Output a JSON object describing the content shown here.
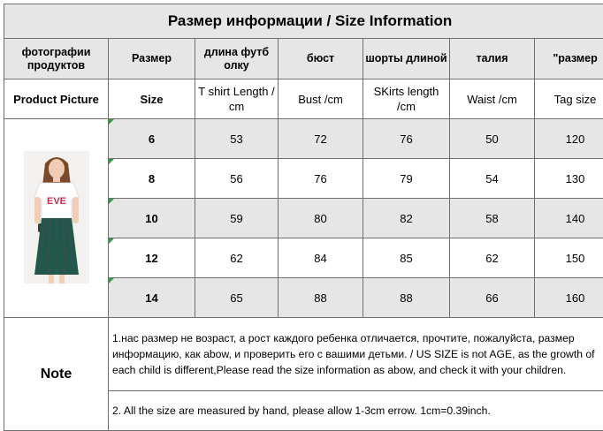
{
  "title": "Размер информации / Size Information",
  "headers_ru": [
    "фотографии продуктов",
    "Размер",
    "длина футб олку",
    "бюст",
    "шорты длиной",
    "талия",
    "\"размер"
  ],
  "headers_en": [
    "Product Picture",
    "Size",
    "T shirt Length / cm",
    "Bust  /cm",
    "SKirts  length /cm",
    "Waist /cm",
    "Tag size"
  ],
  "rows": [
    {
      "size": "6",
      "tshirt": "53",
      "bust": "72",
      "skirt": "76",
      "waist": "50",
      "tag": "120"
    },
    {
      "size": "8",
      "tshirt": "56",
      "bust": "76",
      "skirt": "79",
      "waist": "54",
      "tag": "130"
    },
    {
      "size": "10",
      "tshirt": "59",
      "bust": "80",
      "skirt": "82",
      "waist": "58",
      "tag": "140"
    },
    {
      "size": "12",
      "tshirt": "62",
      "bust": "84",
      "skirt": "85",
      "waist": "62",
      "tag": "150"
    },
    {
      "size": "14",
      "tshirt": "65",
      "bust": "88",
      "skirt": "88",
      "waist": "66",
      "tag": "160"
    }
  ],
  "product": {
    "shirt_print": "EVE",
    "colors": {
      "hair": "#7a4a2a",
      "skin": "#f1cdb5",
      "shirt": "#ffffff",
      "skirt": "#1f5a46",
      "skirt_stripe": "#5a3a7a",
      "accent": "#2e9e3e"
    }
  },
  "note": {
    "label": "Note",
    "line1": "1.нас размер не возраст, а рост каждого ребенка отличается, прочтите, пожалуйста, размер информацию, как abow, и проверить его с вашими детьми.  /  US SIZE is not AGE, as the growth of each child is different,Please read the size information as abow,   and check it with your children.",
    "line2": "2. All the size are measured by hand, please allow 1-3cm errow. 1cm=0.39inch."
  }
}
